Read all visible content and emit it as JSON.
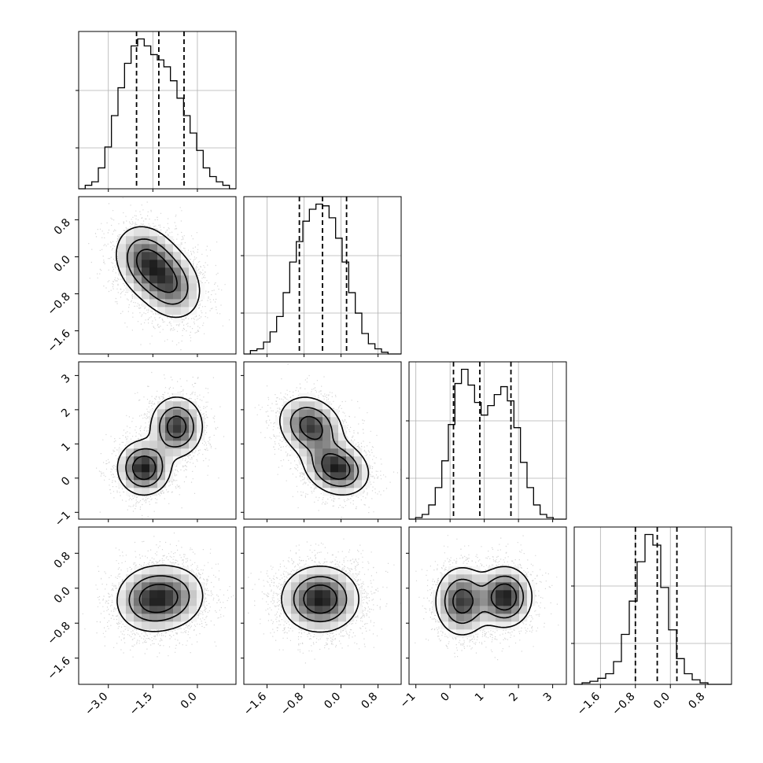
{
  "chart_data": {
    "type": "corner",
    "parameters": [
      {
        "id": "p0",
        "range": [
          -4.0,
          1.3
        ],
        "ticks": [
          -3.0,
          -1.5,
          0.0
        ],
        "tick_labels": [
          "−3.0",
          "−1.5",
          "0.0"
        ],
        "quantiles": [
          -2.05,
          -1.3,
          -0.45
        ]
      },
      {
        "id": "p1",
        "range": [
          -2.1,
          1.3
        ],
        "ticks": [
          -1.6,
          -0.8,
          0.0,
          0.8
        ],
        "tick_labels": [
          "−1.6",
          "−0.8",
          "0.0",
          "0.8"
        ],
        "quantiles": [
          -0.9,
          -0.4,
          0.12
        ]
      },
      {
        "id": "p2",
        "range": [
          -1.2,
          3.4
        ],
        "ticks": [
          -1,
          0,
          1,
          2,
          3
        ],
        "tick_labels": [
          "−1",
          "0",
          "1",
          "2",
          "3"
        ],
        "quantiles": [
          0.1,
          0.87,
          1.78
        ]
      },
      {
        "id": "p3",
        "range": [
          -2.2,
          1.4
        ],
        "ticks": [
          -1.6,
          -0.8,
          0.0,
          0.8
        ],
        "tick_labels": [
          "−1.6",
          "−0.8",
          "0.0",
          "0.8"
        ],
        "quantiles": [
          -0.8,
          -0.3,
          0.15
        ]
      }
    ],
    "histograms": [
      {
        "param": "p0",
        "counts": [
          0,
          2,
          4,
          12,
          24,
          42,
          58,
          72,
          82,
          86,
          82,
          77,
          74,
          70,
          62,
          52,
          42,
          32,
          22,
          12,
          7,
          4,
          2,
          0
        ]
      },
      {
        "param": "p1",
        "counts": [
          0,
          2,
          3,
          7,
          13,
          22,
          36,
          54,
          66,
          78,
          85,
          88,
          87,
          80,
          68,
          54,
          36,
          24,
          12,
          6,
          3,
          1,
          0,
          0
        ]
      },
      {
        "param": "p2",
        "counts": [
          0,
          1,
          3,
          9,
          20,
          37,
          60,
          86,
          95,
          85,
          74,
          66,
          72,
          79,
          84,
          75,
          58,
          36,
          20,
          9,
          3,
          1,
          0,
          0
        ]
      },
      {
        "param": "p3",
        "counts": [
          0,
          1,
          2,
          4,
          7,
          15,
          33,
          55,
          81,
          99,
          92,
          64,
          36,
          17,
          7,
          3,
          1,
          0,
          0,
          0
        ]
      }
    ],
    "components_2d": {
      "p1_vs_p0": [
        {
          "weight": 0.55,
          "mean": [
            -1.7,
            -0.1
          ],
          "sd": [
            0.55,
            0.4
          ],
          "rho": -0.2
        },
        {
          "weight": 0.45,
          "mean": [
            -0.9,
            -0.6
          ],
          "sd": [
            0.55,
            0.4
          ],
          "rho": -0.2
        }
      ],
      "p2_vs_p0": [
        {
          "weight": 0.5,
          "mean": [
            -1.8,
            0.3
          ],
          "sd": [
            0.45,
            0.4
          ],
          "rho": 0.0
        },
        {
          "weight": 0.5,
          "mean": [
            -0.7,
            1.5
          ],
          "sd": [
            0.45,
            0.45
          ],
          "rho": 0.0
        }
      ],
      "p2_vs_p1": [
        {
          "weight": 0.5,
          "mean": [
            -0.65,
            1.5
          ],
          "sd": [
            0.35,
            0.45
          ],
          "rho": -0.2
        },
        {
          "weight": 0.5,
          "mean": [
            -0.1,
            0.3
          ],
          "sd": [
            0.35,
            0.4
          ],
          "rho": -0.2
        }
      ],
      "p3_vs_p0": [
        {
          "weight": 0.6,
          "mean": [
            -1.6,
            -0.25
          ],
          "sd": [
            0.6,
            0.38
          ],
          "rho": 0.05
        },
        {
          "weight": 0.4,
          "mean": [
            -0.8,
            -0.2
          ],
          "sd": [
            0.6,
            0.38
          ],
          "rho": 0.05
        }
      ],
      "p3_vs_p1": [
        {
          "weight": 1.0,
          "mean": [
            -0.45,
            -0.25
          ],
          "sd": [
            0.42,
            0.38
          ],
          "rho": 0.0
        }
      ],
      "p3_vs_p2": [
        {
          "weight": 0.5,
          "mean": [
            0.35,
            -0.3
          ],
          "sd": [
            0.4,
            0.4
          ],
          "rho": 0.0
        },
        {
          "weight": 0.5,
          "mean": [
            1.6,
            -0.2
          ],
          "sd": [
            0.4,
            0.35
          ],
          "rho": 0.0
        }
      ]
    },
    "quantile_line_style": "dashed",
    "grid": true
  }
}
